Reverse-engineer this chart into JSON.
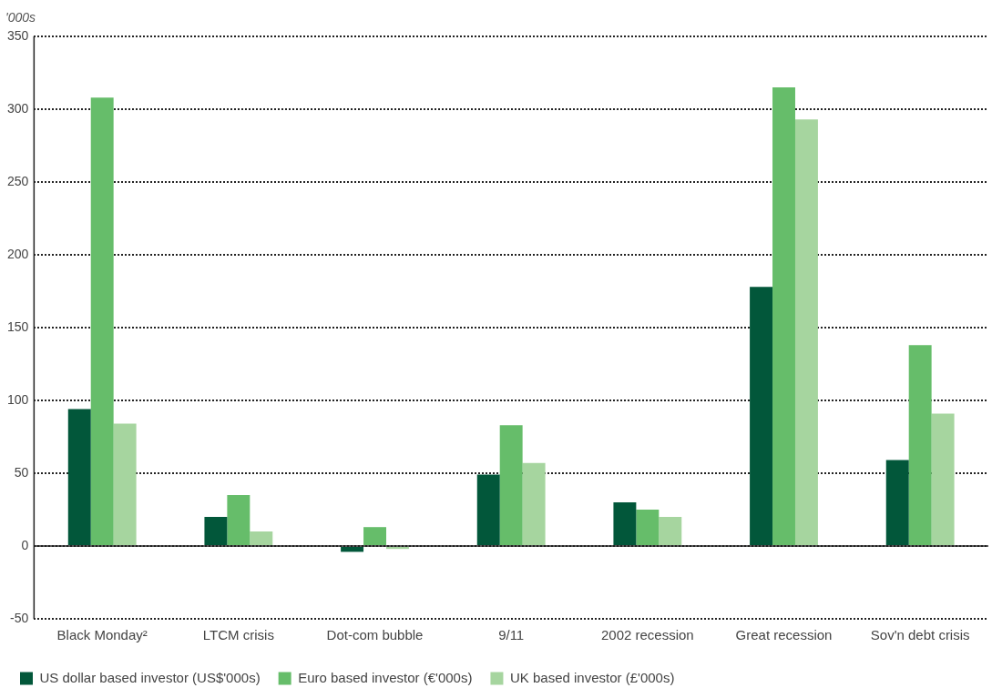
{
  "chart_data": {
    "type": "bar",
    "ylabel": "'000s",
    "categories": [
      "Black Monday²",
      "LTCM crisis",
      "Dot-com bubble",
      "9/11",
      "2002 recession",
      "Great recession",
      "Sov'n debt crisis"
    ],
    "series": [
      {
        "name": "US dollar based investor (US$'000s)",
        "color": "#02573a",
        "values": [
          94,
          20,
          -4,
          49,
          30,
          178,
          59
        ]
      },
      {
        "name": "Euro based investor (€'000s)",
        "color": "#66bd6a",
        "values": [
          308,
          35,
          13,
          83,
          25,
          315,
          138
        ]
      },
      {
        "name": "UK based investor (£'000s)",
        "color": "#a6d59f",
        "values": [
          84,
          10,
          -2,
          57,
          20,
          293,
          91
        ]
      }
    ],
    "ylim": [
      -50,
      350
    ],
    "yticks": [
      -50,
      0,
      50,
      100,
      150,
      200,
      250,
      300,
      350
    ],
    "grid": "y",
    "legend": "bottom left"
  }
}
